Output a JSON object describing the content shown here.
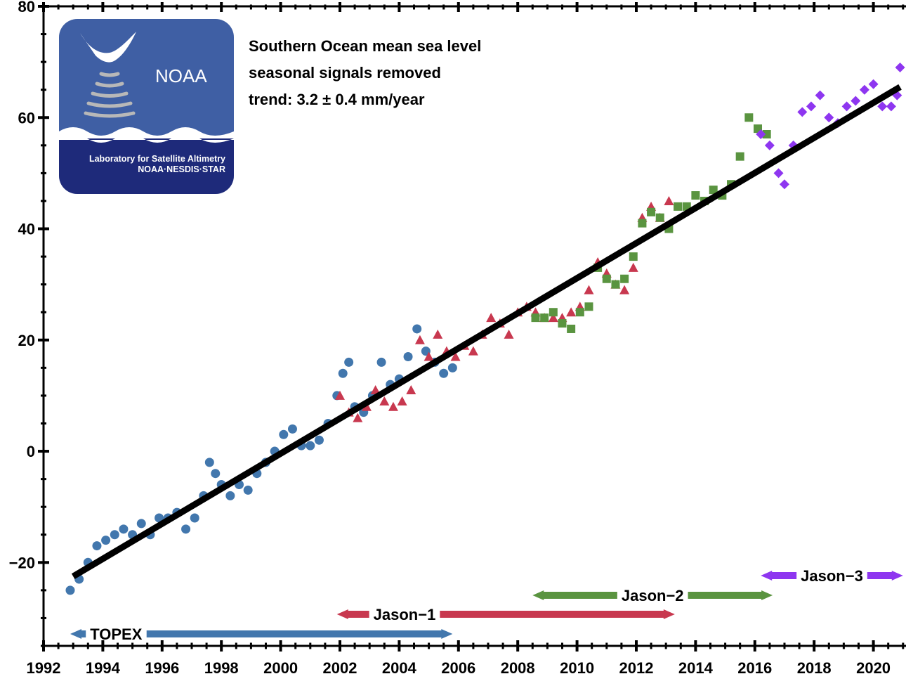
{
  "chart_data": {
    "type": "scatter",
    "title": "",
    "xlabel": "",
    "ylabel": "",
    "xlim": [
      1992,
      2021.1
    ],
    "ylim": [
      -35,
      80
    ],
    "x_ticks": [
      "1992",
      "1994",
      "1996",
      "1998",
      "2000",
      "2002",
      "2004",
      "2006",
      "2008",
      "2010",
      "2012",
      "2014",
      "2016",
      "2018",
      "2020"
    ],
    "y_ticks": [
      "-20",
      "0",
      "20",
      "40",
      "60",
      "80"
    ],
    "grid": false,
    "annotations": [
      "Southern Ocean mean sea level",
      "seasonal signals removed",
      "trend:  3.2 ± 0.4 mm/year"
    ],
    "trend_line": {
      "x": [
        1993.0,
        2020.9
      ],
      "y": [
        -22.5,
        65.5
      ]
    },
    "series": [
      {
        "name": "TOPEX",
        "color": "#4277ad",
        "marker": "circle",
        "mission_span": [
          1992.9,
          2005.8
        ],
        "x": [
          1992.9,
          1993.2,
          1993.5,
          1993.8,
          1994.1,
          1994.4,
          1994.7,
          1995.0,
          1995.3,
          1995.6,
          1995.9,
          1996.2,
          1996.5,
          1996.8,
          1997.1,
          1997.4,
          1997.6,
          1997.8,
          1998.0,
          1998.3,
          1998.6,
          1998.9,
          1999.2,
          1999.5,
          1999.8,
          2000.1,
          2000.4,
          2000.7,
          2001.0,
          2001.3,
          2001.6,
          2001.9,
          2002.1,
          2002.3,
          2002.5,
          2002.8,
          2003.1,
          2003.4,
          2003.7,
          2004.0,
          2004.3,
          2004.6,
          2004.9,
          2005.2,
          2005.5,
          2005.8
        ],
        "y": [
          -25,
          -23,
          -20,
          -17,
          -16,
          -15,
          -14,
          -15,
          -13,
          -15,
          -12,
          -12,
          -11,
          -14,
          -12,
          -8,
          -2,
          -4,
          -6,
          -8,
          -6,
          -7,
          -4,
          -2,
          0,
          3,
          4,
          1,
          1,
          2,
          5,
          10,
          14,
          16,
          8,
          7,
          10,
          16,
          12,
          13,
          17,
          22,
          18,
          16,
          14,
          15
        ]
      },
      {
        "name": "Jason-1",
        "color": "#c8384f",
        "marker": "triangle",
        "mission_span": [
          2001.9,
          2013.3
        ],
        "x": [
          2002.0,
          2002.3,
          2002.6,
          2002.9,
          2003.2,
          2003.5,
          2003.8,
          2004.1,
          2004.4,
          2004.7,
          2005.0,
          2005.3,
          2005.6,
          2005.9,
          2006.2,
          2006.5,
          2006.8,
          2007.1,
          2007.4,
          2007.7,
          2008.0,
          2008.3,
          2008.6,
          2008.9,
          2009.2,
          2009.5,
          2009.8,
          2010.1,
          2010.4,
          2010.7,
          2011.0,
          2011.3,
          2011.6,
          2011.9,
          2012.2,
          2012.5,
          2012.8,
          2013.1
        ],
        "y": [
          10,
          7,
          6,
          8,
          11,
          9,
          8,
          9,
          11,
          20,
          17,
          21,
          18,
          17,
          19,
          18,
          21,
          24,
          23,
          21,
          25,
          26,
          25,
          24,
          24,
          24,
          25,
          26,
          29,
          34,
          32,
          30,
          29,
          33,
          42,
          44,
          42,
          45
        ]
      },
      {
        "name": "Jason-2",
        "color": "#5a9440",
        "marker": "square",
        "mission_span": [
          2008.5,
          2016.6
        ],
        "x": [
          2008.6,
          2008.9,
          2009.2,
          2009.5,
          2009.8,
          2010.1,
          2010.4,
          2010.7,
          2011.0,
          2011.3,
          2011.6,
          2011.9,
          2012.2,
          2012.5,
          2012.8,
          2013.1,
          2013.4,
          2013.7,
          2014.0,
          2014.3,
          2014.6,
          2014.9,
          2015.2,
          2015.5,
          2015.8,
          2016.1,
          2016.4
        ],
        "y": [
          24,
          24,
          25,
          23,
          22,
          25,
          26,
          33,
          31,
          30,
          31,
          35,
          41,
          43,
          42,
          40,
          44,
          44,
          46,
          45,
          47,
          46,
          48,
          53,
          60,
          58,
          57
        ]
      },
      {
        "name": "Jason-3",
        "color": "#8e36f0",
        "marker": "diamond",
        "mission_span": [
          2016.2,
          2021.0
        ],
        "x": [
          2016.2,
          2016.5,
          2016.8,
          2017.0,
          2017.3,
          2017.6,
          2017.9,
          2018.2,
          2018.5,
          2018.8,
          2019.1,
          2019.4,
          2019.7,
          2020.0,
          2020.3,
          2020.6,
          2020.8,
          2020.9
        ],
        "y": [
          57,
          55,
          50,
          48,
          55,
          61,
          62,
          64,
          60,
          59,
          62,
          63,
          65,
          66,
          62,
          62,
          64,
          69
        ]
      }
    ]
  },
  "logo": {
    "brand": "NOAA",
    "line1": "Laboratory for Satellite Altimetry",
    "line2": "NOAA·NESDIS·STAR"
  }
}
